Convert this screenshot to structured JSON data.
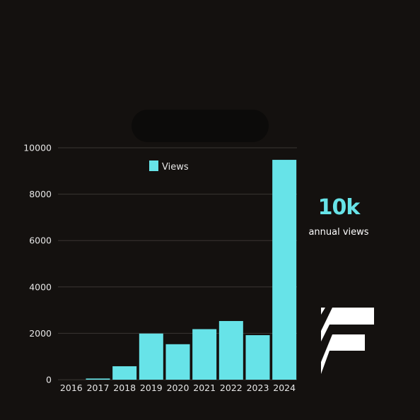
{
  "chart_data": {
    "type": "bar",
    "categories": [
      "2016",
      "2017",
      "2018",
      "2019",
      "2020",
      "2021",
      "2022",
      "2023",
      "2024"
    ],
    "values": [
      0,
      50,
      580,
      1990,
      1530,
      2180,
      2530,
      1920,
      9480
    ],
    "series": [
      {
        "name": "Views",
        "values": [
          0,
          50,
          580,
          1990,
          1530,
          2180,
          2530,
          1920,
          9480
        ]
      }
    ],
    "yticks": [
      "0",
      "2000",
      "4000",
      "6000",
      "8000",
      "10000"
    ],
    "ylim": [
      0,
      10000
    ],
    "grid": true,
    "legend_position": "top-center",
    "bar_color": "#67e3e8"
  },
  "stat": {
    "value": "10k",
    "label": "annual views",
    "accent_color": "#67e3e8"
  },
  "brand": {
    "icon": "stylized-f-logo-icon"
  }
}
